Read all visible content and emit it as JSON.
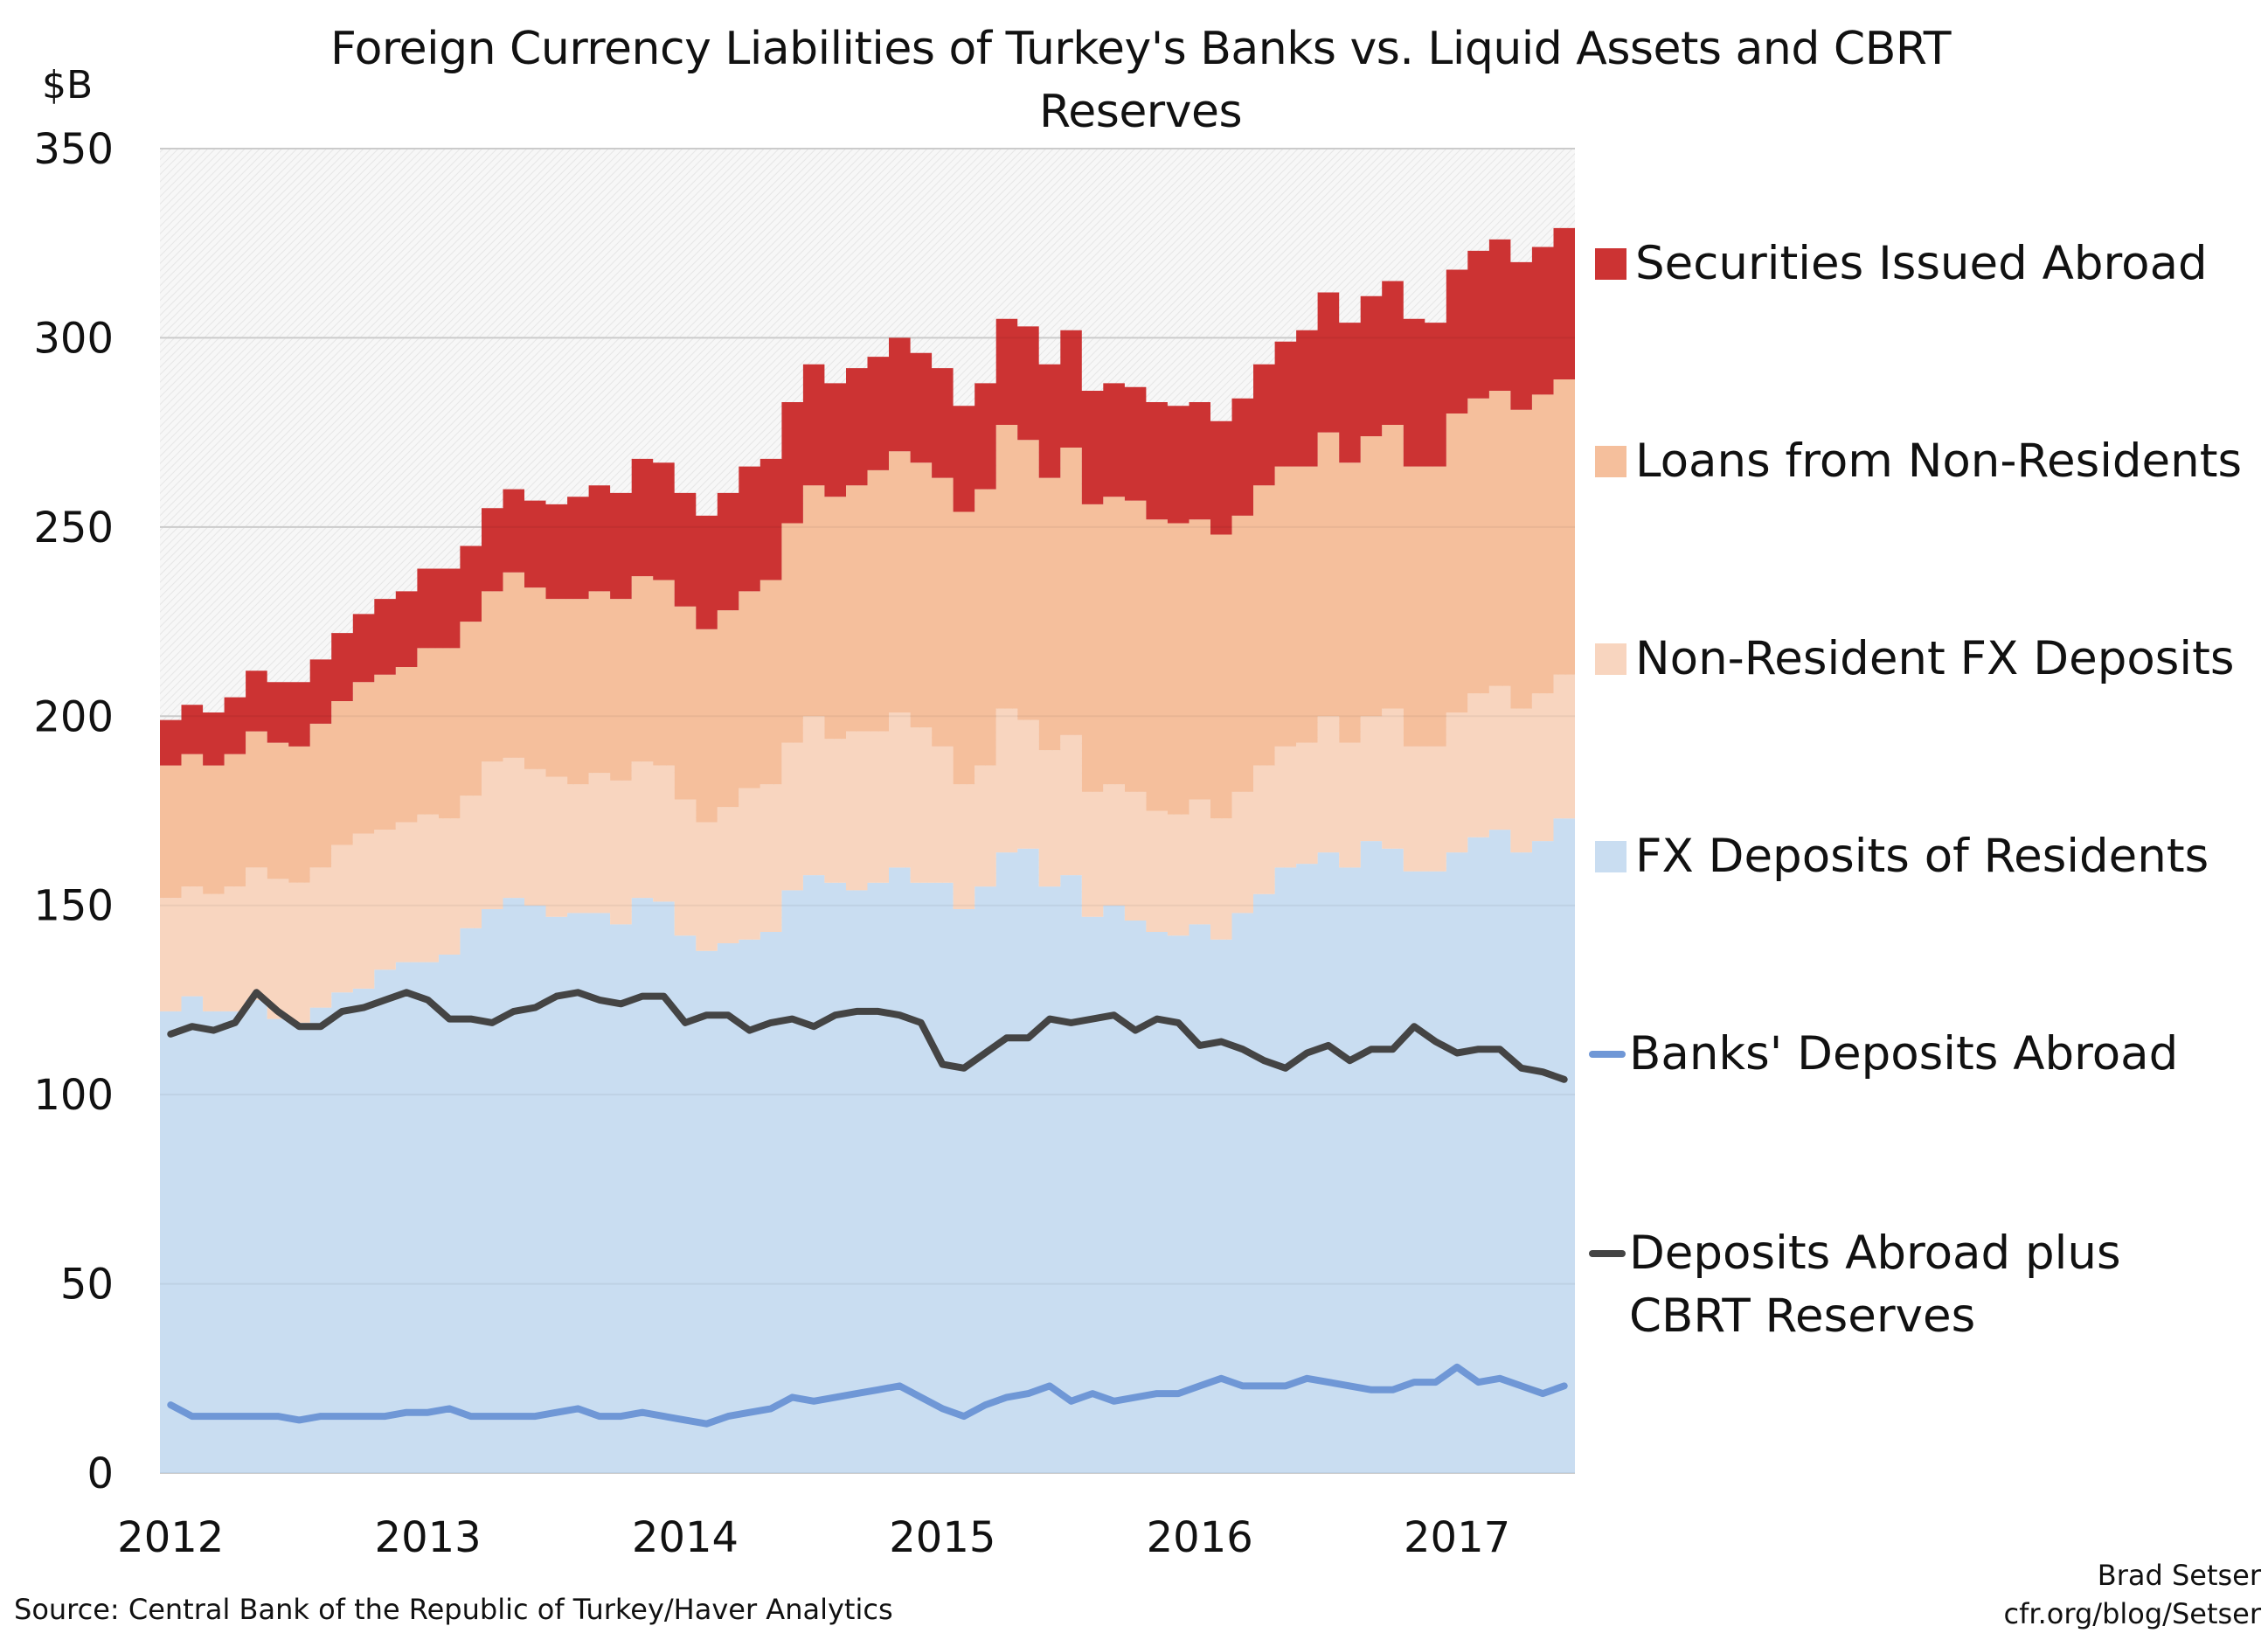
{
  "chart_data": {
    "type": "area",
    "stacked": true,
    "title": "Foreign Currency Liabilities of Turkey's Banks vs. Liquid Assets and CBRT Reserves",
    "ylabel": "$B",
    "ylim": [
      0,
      350
    ],
    "yticks": [
      "0",
      "50",
      "100",
      "150",
      "200",
      "250",
      "300",
      "350"
    ],
    "xticks": [
      "2012",
      "2013",
      "2014",
      "2015",
      "2016",
      "2017"
    ],
    "x_start": "2012-01",
    "x_end": "2017-06",
    "frequency": "monthly",
    "grid": true,
    "legend_position": "right",
    "series": [
      {
        "name": "FX Deposits of Residents",
        "kind": "area",
        "color": "#c9ddf1",
        "values": [
          122,
          126,
          122,
          122,
          125,
          120,
          119,
          123,
          127,
          128,
          133,
          135,
          135,
          137,
          144,
          149,
          152,
          150,
          147,
          148,
          148,
          145,
          152,
          151,
          142,
          138,
          140,
          141,
          143,
          154,
          158,
          156,
          154,
          156,
          160,
          156,
          156,
          149,
          155,
          164,
          165,
          155,
          158,
          147,
          150,
          146,
          143,
          142,
          145,
          141,
          148,
          153,
          160,
          161,
          164,
          160,
          167,
          165,
          159,
          159,
          164,
          168,
          170,
          164,
          167,
          173
        ]
      },
      {
        "name": "Non-Resident FX Deposits",
        "kind": "area",
        "color": "#f8d5bf",
        "values": [
          30,
          29,
          31,
          33,
          35,
          37,
          37,
          37,
          39,
          41,
          37,
          37,
          39,
          36,
          35,
          39,
          37,
          36,
          37,
          34,
          37,
          38,
          36,
          36,
          36,
          34,
          36,
          40,
          39,
          39,
          42,
          38,
          42,
          40,
          41,
          41,
          36,
          33,
          32,
          38,
          34,
          36,
          37,
          33,
          32,
          34,
          32,
          32,
          33,
          32,
          32,
          34,
          32,
          32,
          36,
          33,
          33,
          37,
          33,
          33,
          37,
          38,
          38,
          38,
          39,
          38
        ]
      },
      {
        "name": "Loans from Non-Residents",
        "kind": "area",
        "color": "#f5bf9c",
        "values": [
          35,
          35,
          34,
          35,
          36,
          36,
          36,
          38,
          38,
          40,
          41,
          41,
          44,
          45,
          46,
          45,
          49,
          48,
          47,
          49,
          48,
          48,
          49,
          49,
          51,
          51,
          52,
          52,
          54,
          58,
          61,
          64,
          65,
          69,
          69,
          70,
          71,
          72,
          73,
          75,
          74,
          72,
          76,
          76,
          76,
          77,
          77,
          77,
          74,
          75,
          73,
          74,
          74,
          73,
          75,
          74,
          74,
          75,
          74,
          74,
          79,
          78,
          78,
          79,
          79,
          78
        ]
      },
      {
        "name": "Securities Issued Abroad",
        "kind": "area",
        "color": "#cc3333",
        "values": [
          12,
          13,
          14,
          15,
          16,
          16,
          17,
          17,
          18,
          18,
          20,
          20,
          21,
          21,
          20,
          22,
          22,
          23,
          25,
          27,
          28,
          28,
          31,
          31,
          30,
          30,
          31,
          33,
          32,
          32,
          32,
          30,
          31,
          30,
          30,
          29,
          29,
          28,
          28,
          28,
          30,
          30,
          31,
          30,
          30,
          30,
          31,
          31,
          31,
          30,
          31,
          32,
          33,
          36,
          37,
          37,
          37,
          38,
          39,
          38,
          38,
          39,
          40,
          39,
          39,
          40
        ]
      },
      {
        "name": "Banks' Deposits Abroad",
        "kind": "line",
        "color": "#6f97d6",
        "values": [
          18,
          15,
          15,
          15,
          15,
          15,
          14,
          15,
          15,
          15,
          15,
          16,
          16,
          17,
          15,
          15,
          15,
          15,
          16,
          17,
          15,
          15,
          16,
          15,
          14,
          13,
          15,
          16,
          17,
          20,
          19,
          20,
          21,
          22,
          23,
          20,
          17,
          15,
          18,
          20,
          21,
          23,
          19,
          21,
          19,
          20,
          21,
          21,
          23,
          25,
          23,
          23,
          23,
          25,
          24,
          23,
          22,
          22,
          24,
          24,
          28,
          24,
          25,
          23,
          21,
          23
        ]
      },
      {
        "name": "Deposits Abroad plus CBRT Reserves",
        "kind": "line",
        "color": "#444444",
        "values": [
          116,
          118,
          117,
          119,
          127,
          122,
          118,
          118,
          122,
          123,
          125,
          127,
          125,
          120,
          120,
          119,
          122,
          123,
          126,
          127,
          125,
          124,
          126,
          126,
          119,
          121,
          121,
          117,
          119,
          120,
          118,
          121,
          122,
          122,
          121,
          119,
          108,
          107,
          111,
          115,
          115,
          120,
          119,
          120,
          121,
          117,
          120,
          119,
          113,
          114,
          112,
          109,
          107,
          111,
          113,
          109,
          112,
          112,
          118,
          114,
          111,
          112,
          112,
          107,
          106,
          104
        ]
      }
    ],
    "legend": [
      {
        "label": "Securities Issued Abroad",
        "type": "box",
        "color": "#cc3333"
      },
      {
        "label": "Loans from Non-Residents",
        "type": "box",
        "color": "#f5bf9c"
      },
      {
        "label": "Non-Resident FX Deposits",
        "type": "box",
        "color": "#f8d5bf"
      },
      {
        "label": "FX Deposits of Residents",
        "type": "box",
        "color": "#c9ddf1"
      },
      {
        "label": "Banks' Deposits Abroad",
        "type": "line",
        "color": "#6f97d6"
      },
      {
        "label": "Deposits Abroad plus CBRT Reserves",
        "label_line1": "Deposits Abroad plus",
        "label_line2": "CBRT Reserves",
        "type": "line",
        "color": "#444444"
      }
    ]
  },
  "footer": {
    "source": "Source: Central Bank of the Republic of Turkey/Haver Analytics",
    "author": "Brad Setser",
    "url": "cfr.org/blog/Setser"
  }
}
